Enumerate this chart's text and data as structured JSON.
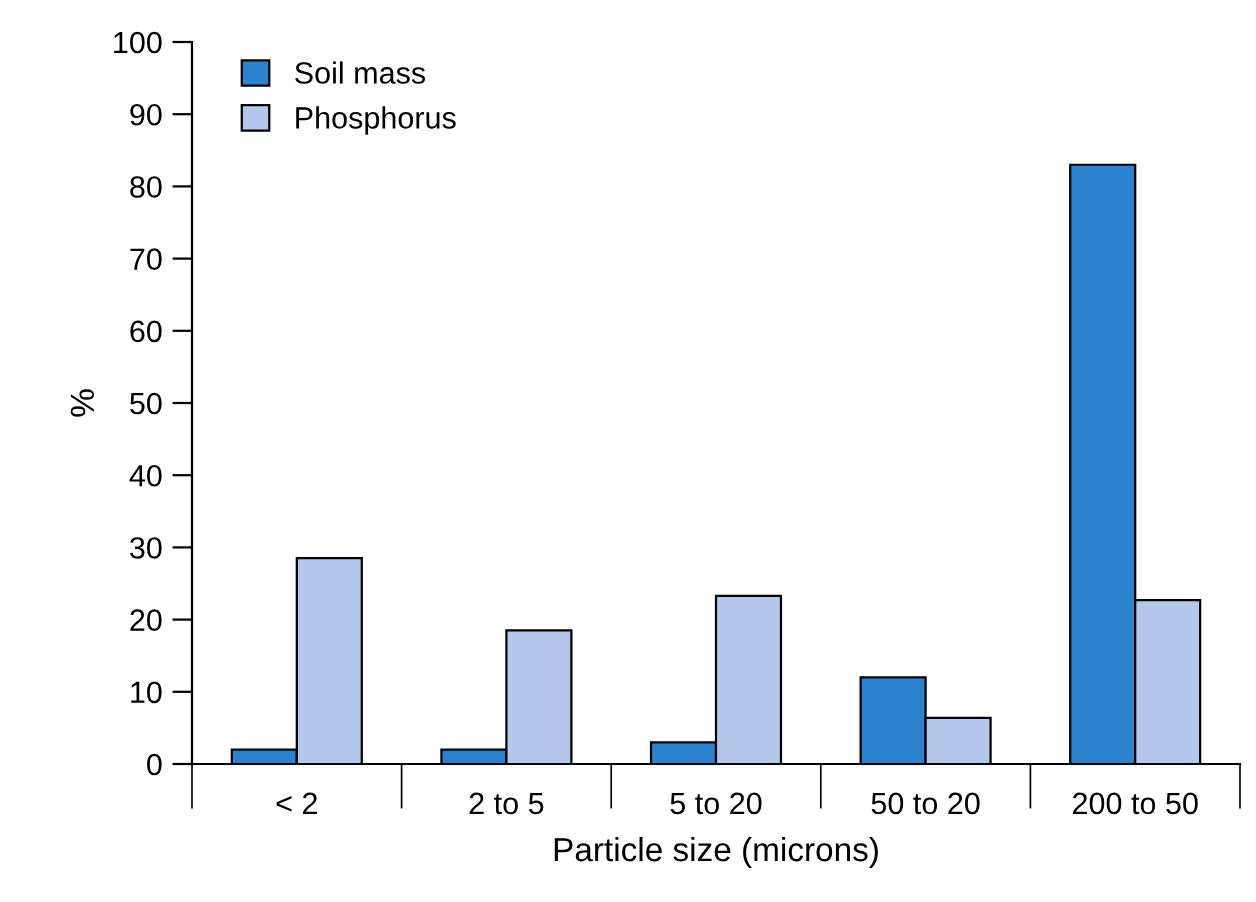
{
  "chart_data": {
    "type": "bar",
    "xlabel": "Particle size (microns)",
    "ylabel": "%",
    "categories": [
      "< 2",
      "2 to 5",
      "5 to 20",
      "50 to 20",
      "200 to 50"
    ],
    "series": [
      {
        "name": "Soil mass",
        "color": "#2b83d0",
        "values": [
          2,
          2,
          3,
          12,
          83
        ]
      },
      {
        "name": "Phosphorus",
        "color": "#b4c8ec",
        "values": [
          28.5,
          18.5,
          23.3,
          6.4,
          22.7
        ]
      }
    ],
    "ylim": [
      0,
      100
    ],
    "yticks": [
      0,
      10,
      20,
      30,
      40,
      50,
      60,
      70,
      80,
      90,
      100
    ],
    "grid": false,
    "legend": "top left"
  }
}
